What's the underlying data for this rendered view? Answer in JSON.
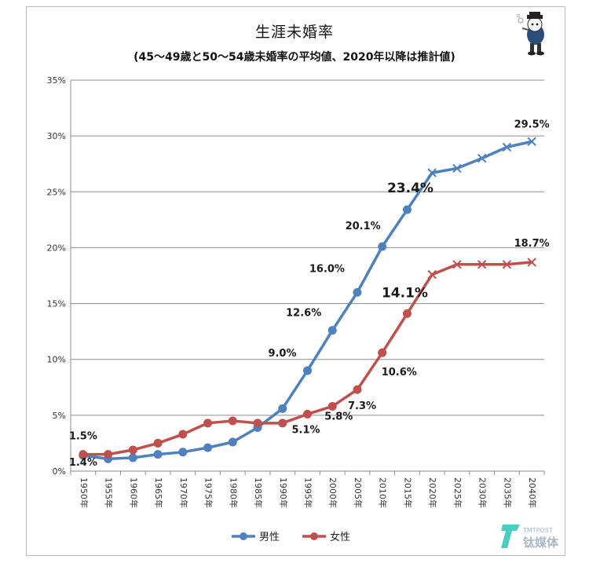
{
  "chart_data": {
    "type": "line",
    "title": "生涯未婚率",
    "subtitle": "(45～49歳と50～54歳未婚率の平均値、2020年以降は推計値)",
    "categories": [
      "1950年",
      "1955年",
      "1960年",
      "1965年",
      "1970年",
      "1975年",
      "1980年",
      "1985年",
      "1990年",
      "1995年",
      "2000年",
      "2005年",
      "2010年",
      "2015年",
      "2020年",
      "2025年",
      "2030年",
      "2035年",
      "2040年"
    ],
    "y_ticks": [
      "0%",
      "5%",
      "10%",
      "15%",
      "20%",
      "25%",
      "30%",
      "35%"
    ],
    "ylim": [
      0,
      35
    ],
    "grid": true,
    "legend_position": "bottom",
    "series": [
      {
        "name": "男性",
        "color": "#4f81bd",
        "values": [
          1.4,
          1.1,
          1.2,
          1.5,
          1.7,
          2.1,
          2.6,
          3.9,
          5.6,
          9.0,
          12.6,
          16.0,
          20.1,
          23.4,
          26.7,
          27.1,
          28.0,
          29.0,
          29.5
        ],
        "labels": [
          {
            "index": 0,
            "text": "1.4%"
          },
          {
            "index": 9,
            "text": "9.0%"
          },
          {
            "index": 10,
            "text": "12.6%"
          },
          {
            "index": 11,
            "text": "16.0%"
          },
          {
            "index": 12,
            "text": "20.1%"
          },
          {
            "index": 13,
            "text": "23.4%"
          },
          {
            "index": 18,
            "text": "29.5%"
          }
        ]
      },
      {
        "name": "女性",
        "color": "#c0504d",
        "values": [
          1.5,
          1.5,
          1.9,
          2.5,
          3.3,
          4.3,
          4.5,
          4.3,
          4.3,
          5.1,
          5.8,
          7.3,
          10.6,
          14.1,
          17.6,
          18.5,
          18.5,
          18.5,
          18.7
        ],
        "labels": [
          {
            "index": 0,
            "text": "1.5%"
          },
          {
            "index": 9,
            "text": "5.1%"
          },
          {
            "index": 10,
            "text": "5.8%"
          },
          {
            "index": 11,
            "text": "7.3%"
          },
          {
            "index": 12,
            "text": "10.6%"
          },
          {
            "index": 13,
            "text": "14.1%"
          },
          {
            "index": 18,
            "text": "18.7%"
          }
        ]
      }
    ]
  },
  "logo": {
    "text": "钛媒体",
    "subtext": "TMTPOST"
  }
}
